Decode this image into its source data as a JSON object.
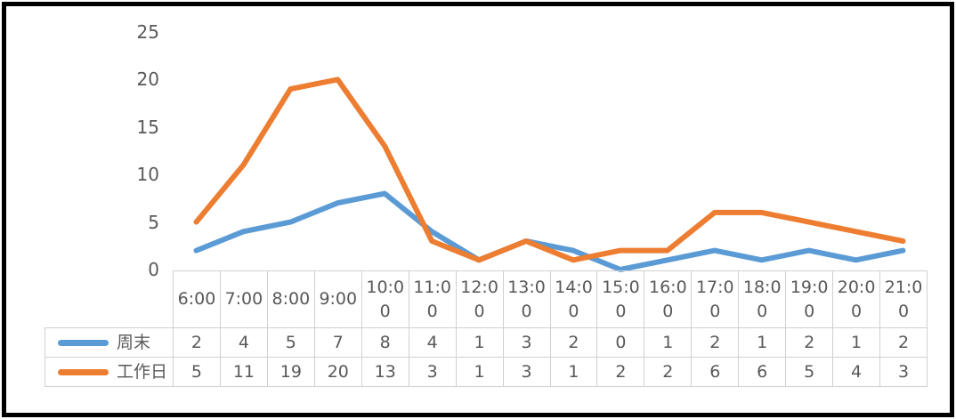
{
  "chart_data": {
    "type": "line",
    "title": "",
    "xlabel": "",
    "ylabel": "",
    "categories": [
      "6:00",
      "7:00",
      "8:00",
      "9:00",
      "10:00",
      "11:00",
      "12:00",
      "13:00",
      "14:00",
      "15:00",
      "16:00",
      "17:00",
      "18:00",
      "19:00",
      "20:00",
      "21:00"
    ],
    "series": [
      {
        "name": "周末",
        "color": "#5B9BD5",
        "values": [
          2,
          4,
          5,
          7,
          8,
          4,
          1,
          3,
          2,
          0,
          1,
          2,
          1,
          2,
          1,
          2
        ]
      },
      {
        "name": "工作日",
        "color": "#ED7D31",
        "values": [
          5,
          11,
          19,
          20,
          13,
          3,
          1,
          3,
          1,
          2,
          2,
          6,
          6,
          5,
          4,
          3
        ]
      }
    ],
    "ylim": [
      0,
      25
    ],
    "yticks": [
      25,
      20,
      15,
      10,
      5,
      0
    ],
    "grid": false,
    "legend_position": "data-table-left-column",
    "data_table_shown": true
  },
  "styles": {
    "series_weekend_color": "#5B9BD5",
    "series_workday_color": "#ED7D31",
    "axis_text_color": "#595959",
    "table_border_color": "#D0D0D0",
    "frame_color": "#000000",
    "background": "#FFFFFF"
  }
}
